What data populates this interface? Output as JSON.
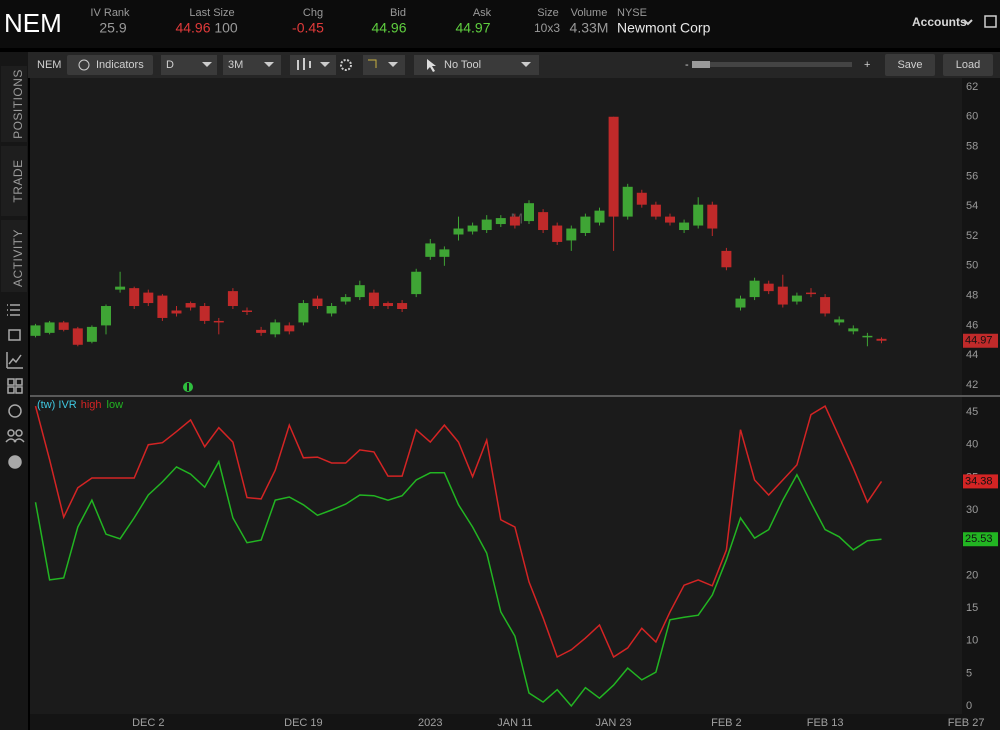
{
  "header": {
    "symbol": "NEM",
    "iv_rank": {
      "label": "IV Rank",
      "value": 25.9
    },
    "last_size": {
      "label": "Last Size",
      "price": 44.96,
      "size": 100
    },
    "chg": {
      "label": "Chg",
      "value": -0.45
    },
    "bid": {
      "label": "Bid",
      "value": 44.96
    },
    "ask": {
      "label": "Ask",
      "value": 44.97
    },
    "size": {
      "label": "Size",
      "value": "10x3"
    },
    "volume": {
      "label": "Volume",
      "value": "4.33M"
    },
    "exchange": "NYSE",
    "company": "Newmont Corp",
    "accounts": "Accounts"
  },
  "toolbar": {
    "symbol": "NEM",
    "indicators": "Indicators",
    "period": "D",
    "range": "3M",
    "tool": "No Tool",
    "zoom_out": "-",
    "zoom_in": "+",
    "save": "Save",
    "load": "Load"
  },
  "sidebar": {
    "tabs": [
      "POSITIONS",
      "TRADE",
      "ACTIVITY"
    ]
  },
  "chart_data": [
    {
      "type": "candlestick",
      "up_color": "#3fa535",
      "down_color": "#c02a2a",
      "annotation": "M",
      "open": [
        45.3,
        45.5,
        46.2,
        45.8,
        44.9,
        46.0,
        48.4,
        48.5,
        48.2,
        48.0,
        47.0,
        47.5,
        47.3,
        46.3,
        48.3,
        47.0,
        45.7,
        45.4,
        46.0,
        46.2,
        47.8,
        46.8,
        47.6,
        47.9,
        48.2,
        47.5,
        47.5,
        48.1,
        50.6,
        50.6,
        52.1,
        52.3,
        52.4,
        52.8,
        53.3,
        53.0,
        53.6,
        52.7,
        51.7,
        52.2,
        52.9,
        60.0,
        53.3,
        54.9,
        54.1,
        53.3,
        52.4,
        52.7,
        54.1,
        51.0,
        47.2,
        47.9,
        48.8,
        48.6,
        47.6,
        48.2,
        47.9,
        46.2,
        45.6,
        45.2,
        45.1,
        null,
        null,
        null,
        null,
        null,
        null,
        null,
        null,
        null
      ],
      "high": [
        46.1,
        46.3,
        46.3,
        45.9,
        46.0,
        47.4,
        49.6,
        48.6,
        48.4,
        48.1,
        47.3,
        47.6,
        47.5,
        46.5,
        48.5,
        47.2,
        45.9,
        46.4,
        46.2,
        47.7,
        48.0,
        47.5,
        48.1,
        49.0,
        48.4,
        47.6,
        47.7,
        49.8,
        51.8,
        51.3,
        53.3,
        52.9,
        53.4,
        53.4,
        53.5,
        54.4,
        53.8,
        52.9,
        52.7,
        53.5,
        53.9,
        60.0,
        55.5,
        55.1,
        54.3,
        53.5,
        53.1,
        54.6,
        54.3,
        51.2,
        48.0,
        49.2,
        49.0,
        49.4,
        48.2,
        48.5,
        48.1,
        46.6,
        46.0,
        45.5,
        45.2,
        null,
        null,
        null,
        null,
        null,
        null,
        null,
        null,
        null
      ],
      "low": [
        45.2,
        45.4,
        45.6,
        44.6,
        44.8,
        45.4,
        48.2,
        47.1,
        47.3,
        46.3,
        46.6,
        47.0,
        46.1,
        45.4,
        47.1,
        46.7,
        45.3,
        45.2,
        45.4,
        46.0,
        47.1,
        46.6,
        47.4,
        47.7,
        47.1,
        47.1,
        46.9,
        47.9,
        50.4,
        50.0,
        51.7,
        52.1,
        52.2,
        52.6,
        52.5,
        52.8,
        52.2,
        51.4,
        51.0,
        52.0,
        52.7,
        51.0,
        53.1,
        53.9,
        53.1,
        52.7,
        52.2,
        52.5,
        52.0,
        49.7,
        47.0,
        47.7,
        48.1,
        47.2,
        47.4,
        47.9,
        46.6,
        46.0,
        45.4,
        44.6,
        44.8,
        null,
        null,
        null,
        null,
        null,
        null,
        null,
        null,
        null
      ],
      "close": [
        46.0,
        46.2,
        45.7,
        44.7,
        45.9,
        47.3,
        48.6,
        47.3,
        47.5,
        46.5,
        46.8,
        47.2,
        46.3,
        46.2,
        47.3,
        46.9,
        45.5,
        46.2,
        45.6,
        47.5,
        47.3,
        47.3,
        47.9,
        48.7,
        47.3,
        47.3,
        47.1,
        49.6,
        51.5,
        51.1,
        52.5,
        52.7,
        53.1,
        53.2,
        52.7,
        54.2,
        52.4,
        51.6,
        52.5,
        53.3,
        53.7,
        53.3,
        55.3,
        54.1,
        53.3,
        52.9,
        52.9,
        54.1,
        52.5,
        49.9,
        47.8,
        49.0,
        48.3,
        47.4,
        48.0,
        48.1,
        46.8,
        46.4,
        45.8,
        45.3,
        44.97,
        null,
        null,
        null,
        null,
        null,
        null,
        null,
        null,
        null
      ],
      "ylim": [
        41.33,
        62.6
      ],
      "yticks": [
        42,
        44,
        46,
        48,
        50,
        52,
        54,
        56,
        58,
        60,
        62
      ]
    },
    {
      "type": "line",
      "title": "(tw) IVR",
      "categories": [
        null,
        null,
        null,
        null,
        null,
        null,
        null,
        null,
        "DEC 2",
        null,
        null,
        null,
        null,
        null,
        null,
        null,
        null,
        null,
        null,
        "DEC 19",
        null,
        null,
        null,
        null,
        null,
        null,
        null,
        null,
        "2023",
        null,
        null,
        null,
        null,
        null,
        "JAN 11",
        null,
        null,
        null,
        null,
        null,
        null,
        "JAN 23",
        null,
        null,
        null,
        null,
        null,
        null,
        null,
        "FEB 2",
        null,
        null,
        null,
        null,
        null,
        null,
        "FEB 13",
        null,
        null,
        null,
        null,
        null,
        null,
        null,
        null,
        null,
        "FEB 27",
        null,
        null,
        null
      ],
      "series": [
        {
          "name": "high",
          "color": "#d42424",
          "values": [
            45.9,
            37.7,
            28.9,
            33.4,
            34.9,
            34.9,
            34.9,
            34.9,
            40.0,
            40.3,
            42.0,
            43.8,
            39.7,
            42.6,
            40.4,
            31.9,
            31.7,
            36.1,
            43.0,
            38.0,
            38.1,
            37.2,
            37.2,
            39.2,
            38.9,
            35.2,
            35.2,
            42.3,
            40.4,
            43.0,
            40.4,
            35.1,
            40.7,
            28.5,
            27.4,
            19.0,
            13.5,
            7.5,
            8.6,
            10.4,
            12.4,
            7.5,
            8.9,
            11.9,
            9.8,
            14.4,
            18.5,
            19.3,
            18.4,
            23.9,
            42.3,
            34.6,
            32.3,
            34.6,
            36.9,
            44.6,
            45.9,
            41.2,
            36.4,
            31.2,
            34.38,
            null,
            null,
            null,
            null,
            null,
            null,
            null,
            null,
            null
          ]
        },
        {
          "name": "low",
          "color": "#22b522",
          "values": [
            31.2,
            19.3,
            19.6,
            27.4,
            31.5,
            26.3,
            25.6,
            28.8,
            32.3,
            34.3,
            36.6,
            35.5,
            33.5,
            37.4,
            28.8,
            25.0,
            25.4,
            31.5,
            32.0,
            30.8,
            29.2,
            30.0,
            30.9,
            32.3,
            32.2,
            31.5,
            32.2,
            34.6,
            35.7,
            35.7,
            30.8,
            27.4,
            23.4,
            14.4,
            10.7,
            2.0,
            0.6,
            2.5,
            0,
            2.8,
            1.2,
            3.2,
            5.8,
            4.0,
            5.2,
            13.2,
            13.6,
            13.9,
            17.0,
            22.4,
            28.8,
            25.7,
            27.0,
            31.5,
            35.4,
            31.1,
            27.0,
            25.9,
            23.9,
            25.3,
            25.53,
            null,
            null,
            null,
            null,
            null,
            null,
            null,
            null,
            null
          ]
        }
      ],
      "ylim": [
        -1.22,
        47.3
      ],
      "yticks": [
        0,
        5,
        10,
        15,
        20,
        25,
        30,
        35,
        40,
        45
      ]
    }
  ]
}
